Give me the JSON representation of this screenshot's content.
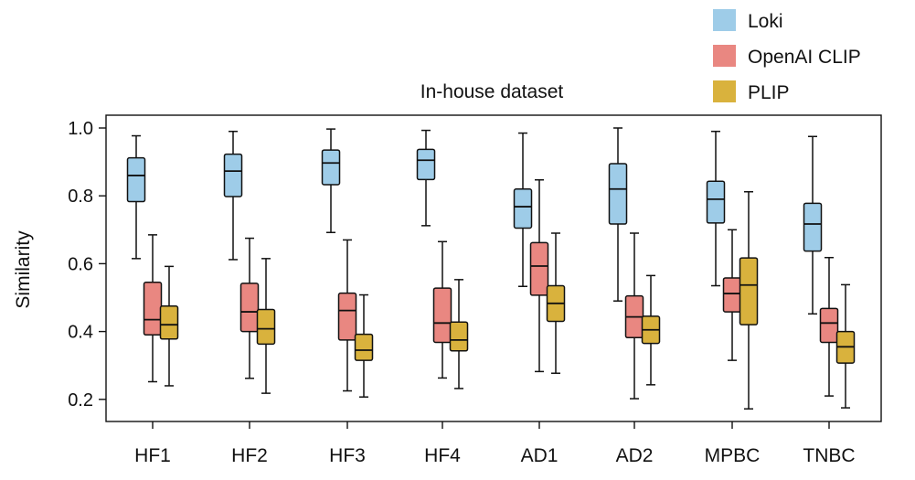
{
  "chart_data": {
    "type": "box",
    "title": "In-house dataset",
    "xlabel": "",
    "ylabel": "Similarity",
    "ylim": [
      0.15,
      1.05
    ],
    "yticks": [
      0.2,
      0.4,
      0.6,
      0.8,
      1.0
    ],
    "ytick_labels": [
      "0.2",
      "0.4",
      "0.6",
      "0.8",
      "1.0"
    ],
    "grid": false,
    "legend_position": "top-right",
    "categories": [
      "HF1",
      "HF2",
      "HF3",
      "HF4",
      "AD1",
      "AD2",
      "MPBC",
      "TNBC"
    ],
    "series": [
      {
        "name": "Loki",
        "color": "#9ecce8",
        "boxes": [
          {
            "min": 0.615,
            "q1": 0.783,
            "median": 0.86,
            "q3": 0.912,
            "max": 0.977
          },
          {
            "min": 0.612,
            "q1": 0.798,
            "median": 0.873,
            "q3": 0.923,
            "max": 0.99
          },
          {
            "min": 0.692,
            "q1": 0.833,
            "median": 0.897,
            "q3": 0.935,
            "max": 0.997
          },
          {
            "min": 0.712,
            "q1": 0.848,
            "median": 0.905,
            "q3": 0.937,
            "max": 0.993
          },
          {
            "min": 0.533,
            "q1": 0.705,
            "median": 0.768,
            "q3": 0.82,
            "max": 0.985
          },
          {
            "min": 0.49,
            "q1": 0.717,
            "median": 0.82,
            "q3": 0.895,
            "max": 1.0
          },
          {
            "min": 0.535,
            "q1": 0.72,
            "median": 0.79,
            "q3": 0.843,
            "max": 0.99
          },
          {
            "min": 0.452,
            "q1": 0.637,
            "median": 0.717,
            "q3": 0.778,
            "max": 0.975
          }
        ]
      },
      {
        "name": "OpenAI CLIP",
        "color": "#e98781",
        "boxes": [
          {
            "min": 0.252,
            "q1": 0.39,
            "median": 0.435,
            "q3": 0.545,
            "max": 0.685
          },
          {
            "min": 0.262,
            "q1": 0.4,
            "median": 0.458,
            "q3": 0.542,
            "max": 0.675
          },
          {
            "min": 0.225,
            "q1": 0.375,
            "median": 0.462,
            "q3": 0.513,
            "max": 0.67
          },
          {
            "min": 0.263,
            "q1": 0.368,
            "median": 0.425,
            "q3": 0.528,
            "max": 0.665
          },
          {
            "min": 0.282,
            "q1": 0.507,
            "median": 0.593,
            "q3": 0.662,
            "max": 0.847
          },
          {
            "min": 0.202,
            "q1": 0.382,
            "median": 0.443,
            "q3": 0.505,
            "max": 0.69
          },
          {
            "min": 0.315,
            "q1": 0.458,
            "median": 0.512,
            "q3": 0.558,
            "max": 0.7
          },
          {
            "min": 0.21,
            "q1": 0.368,
            "median": 0.425,
            "q3": 0.468,
            "max": 0.618
          }
        ]
      },
      {
        "name": "PLIP",
        "color": "#d9b23d",
        "boxes": [
          {
            "min": 0.24,
            "q1": 0.378,
            "median": 0.42,
            "q3": 0.475,
            "max": 0.592
          },
          {
            "min": 0.218,
            "q1": 0.363,
            "median": 0.408,
            "q3": 0.465,
            "max": 0.615
          },
          {
            "min": 0.207,
            "q1": 0.315,
            "median": 0.345,
            "q3": 0.392,
            "max": 0.508
          },
          {
            "min": 0.232,
            "q1": 0.343,
            "median": 0.375,
            "q3": 0.428,
            "max": 0.553
          },
          {
            "min": 0.277,
            "q1": 0.43,
            "median": 0.483,
            "q3": 0.535,
            "max": 0.69
          },
          {
            "min": 0.243,
            "q1": 0.365,
            "median": 0.405,
            "q3": 0.445,
            "max": 0.565
          },
          {
            "min": 0.172,
            "q1": 0.42,
            "median": 0.537,
            "q3": 0.617,
            "max": 0.812
          },
          {
            "min": 0.175,
            "q1": 0.307,
            "median": 0.355,
            "q3": 0.4,
            "max": 0.538
          }
        ]
      }
    ]
  }
}
